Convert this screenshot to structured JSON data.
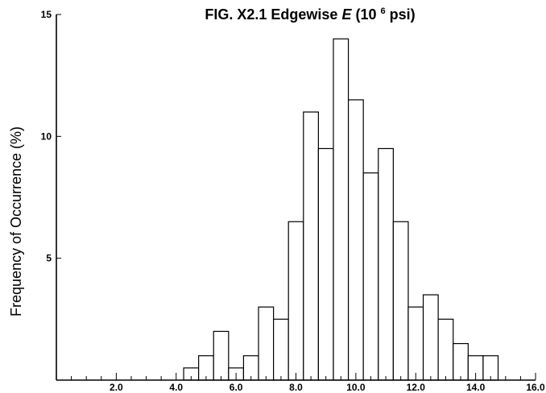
{
  "chart_data": {
    "type": "bar",
    "title": {
      "prefix": "FIG. X2.1 Edgewise ",
      "variable": "E",
      "open": " (10 ",
      "exponent": "6",
      "unit": " psi)"
    },
    "ylabel": "Frequency of Occurrence (%)",
    "xlabel": "",
    "xlim": [
      0,
      16
    ],
    "ylim": [
      0,
      15
    ],
    "x_ticks": [
      "2.0",
      "4.0",
      "6.0",
      "8.0",
      "10.0",
      "12.0",
      "14.0",
      "16.0"
    ],
    "y_ticks": [
      "5",
      "10",
      "15"
    ],
    "bin_width": 0.5,
    "bins": [
      {
        "x_start": 4.25,
        "value": 0.5
      },
      {
        "x_start": 4.75,
        "value": 1.0
      },
      {
        "x_start": 5.25,
        "value": 2.0
      },
      {
        "x_start": 5.75,
        "value": 0.5
      },
      {
        "x_start": 6.25,
        "value": 1.0
      },
      {
        "x_start": 6.75,
        "value": 3.0
      },
      {
        "x_start": 7.25,
        "value": 2.5
      },
      {
        "x_start": 7.75,
        "value": 6.5
      },
      {
        "x_start": 8.25,
        "value": 11.0
      },
      {
        "x_start": 8.75,
        "value": 9.5
      },
      {
        "x_start": 9.25,
        "value": 14.0
      },
      {
        "x_start": 9.75,
        "value": 11.5
      },
      {
        "x_start": 10.25,
        "value": 8.5
      },
      {
        "x_start": 10.75,
        "value": 9.5
      },
      {
        "x_start": 11.25,
        "value": 6.5
      },
      {
        "x_start": 11.75,
        "value": 3.0
      },
      {
        "x_start": 12.25,
        "value": 3.5
      },
      {
        "x_start": 12.75,
        "value": 2.5
      },
      {
        "x_start": 13.25,
        "value": 1.5
      },
      {
        "x_start": 13.75,
        "value": 1.0
      },
      {
        "x_start": 14.25,
        "value": 1.0
      }
    ],
    "grid": false,
    "legend": "none"
  }
}
